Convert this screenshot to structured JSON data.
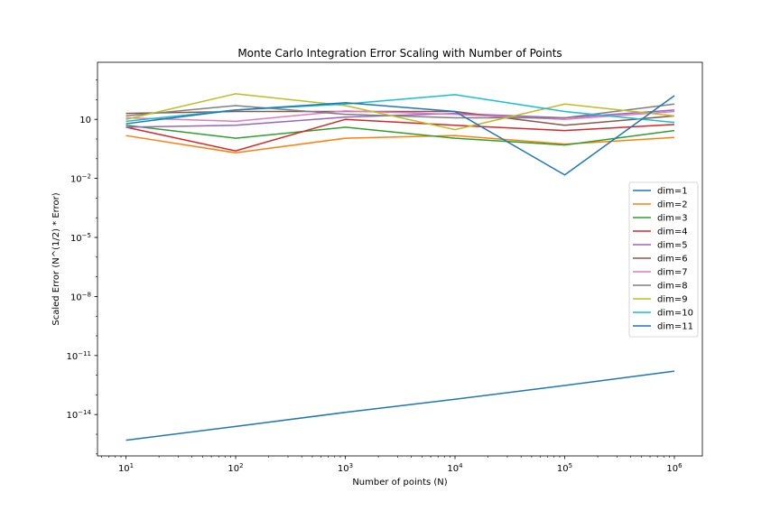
{
  "chart_data": {
    "type": "line",
    "title": "Monte Carlo Integration Error Scaling with Number of Points",
    "xlabel": "Number of points (N)",
    "ylabel": "Scaled Error (N^(1/2) * Error)",
    "xscale": "log",
    "yscale": "log",
    "xlim": [
      5.5,
      1800000.0
    ],
    "ylim_exponent": [
      -16.1,
      3.9
    ],
    "x": [
      10,
      100,
      1000,
      10000,
      100000,
      1000000
    ],
    "xticks": [
      {
        "base": "10",
        "exp": "1"
      },
      {
        "base": "10",
        "exp": "2"
      },
      {
        "base": "10",
        "exp": "3"
      },
      {
        "base": "10",
        "exp": "4"
      },
      {
        "base": "10",
        "exp": "5"
      },
      {
        "base": "10",
        "exp": "6"
      }
    ],
    "yticks": [
      {
        "value_exponent": 1,
        "text": "10",
        "base": "",
        "exp": ""
      },
      {
        "value_exponent": -2,
        "text": "",
        "base": "10",
        "exp": "−2"
      },
      {
        "value_exponent": -5,
        "text": "",
        "base": "10",
        "exp": "−5"
      },
      {
        "value_exponent": -8,
        "text": "",
        "base": "10",
        "exp": "−8"
      },
      {
        "value_exponent": -11,
        "text": "",
        "base": "10",
        "exp": "−11"
      },
      {
        "value_exponent": -14,
        "text": "",
        "base": "10",
        "exp": "−14"
      }
    ],
    "legend_position": "center-right",
    "series": [
      {
        "name": "dim=1",
        "color": "#1f77b4",
        "values": [
          5e-16,
          2.5e-15,
          1.3e-14,
          6e-14,
          3e-13,
          1.6e-12
        ]
      },
      {
        "name": "dim=2",
        "color": "#ff7f0e",
        "values": [
          1.5,
          0.2,
          1.1,
          1.5,
          0.55,
          1.2
        ]
      },
      {
        "name": "dim=3",
        "color": "#2ca02c",
        "values": [
          5,
          1.1,
          4,
          1.1,
          0.5,
          2.7
        ]
      },
      {
        "name": "dim=4",
        "color": "#d62728",
        "values": [
          4,
          0.25,
          10,
          5,
          2.7,
          5.5
        ]
      },
      {
        "name": "dim=5",
        "color": "#9467bd",
        "values": [
          4,
          5,
          13,
          20,
          12,
          30
        ]
      },
      {
        "name": "dim=6",
        "color": "#8c564b",
        "values": [
          20,
          25,
          25,
          25,
          5,
          15
        ]
      },
      {
        "name": "dim=7",
        "color": "#e377c2",
        "values": [
          12,
          8,
          27,
          18,
          10,
          25
        ]
      },
      {
        "name": "dim=8",
        "color": "#7f7f7f",
        "values": [
          15,
          50,
          18,
          12,
          12,
          60
        ]
      },
      {
        "name": "dim=9",
        "color": "#bcbd22",
        "values": [
          10,
          200,
          50,
          3,
          60,
          15
        ]
      },
      {
        "name": "dim=10",
        "color": "#17becf",
        "values": [
          8,
          30,
          60,
          180,
          25,
          7
        ]
      },
      {
        "name": "dim=11",
        "color": "#1f77b4",
        "values": [
          6,
          30,
          70,
          25,
          0.015,
          160
        ]
      }
    ]
  }
}
